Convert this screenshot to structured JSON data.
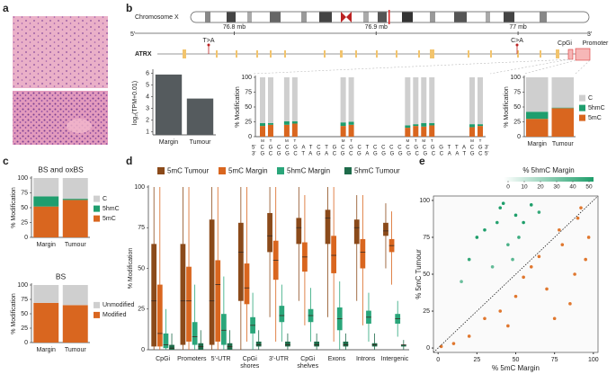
{
  "panel_labels": [
    "a",
    "b",
    "c",
    "d",
    "e"
  ],
  "gene_track": {
    "chromosome": "Chromosome X",
    "ends": [
      "5'",
      "3'"
    ],
    "xlim": [
      76.73,
      77.05
    ],
    "xticks": [
      {
        "value": 76.8,
        "label": "76.8 mb"
      },
      {
        "value": 76.9,
        "label": "76.9 mb"
      },
      {
        "value": 77,
        "label": "77 mb"
      }
    ],
    "gene": "ATRX",
    "mutations": [
      "T>A",
      "C>A"
    ],
    "regions": [
      "CpGi",
      "Promoter"
    ]
  },
  "chart_data": [
    {
      "type": "bar",
      "ylabel": "log₂(TPM+0.01)",
      "categories": [
        "Margin",
        "Tumour"
      ],
      "values": [
        5.9,
        3.85
      ],
      "color": "#555b5e",
      "ylim": [
        0.75,
        6.2
      ],
      "yticks": [
        1,
        2,
        3,
        4,
        5,
        6
      ]
    },
    {
      "type": "stacked_bar",
      "ylabel": "% Modification",
      "categories": [
        "M",
        "T",
        "M",
        "T",
        "M",
        "T",
        "M",
        "T",
        "M",
        "T",
        "M",
        "T"
      ],
      "sequence": "CGCCGATCTGCGCTCCCCCGCGGTTACG",
      "complement": "GCGGCTAGACGCGAGGGGGCGCCAATGC",
      "ends_top": [
        "5'",
        "3'"
      ],
      "ends_bottom": [
        "3'",
        "5'"
      ],
      "series": [
        {
          "color": "#d9661f",
          "values": [
            18,
            20,
            20,
            22,
            18,
            20,
            15,
            18,
            17,
            19,
            16,
            18
          ]
        },
        {
          "color": "#1f9e6e",
          "values": [
            5,
            3,
            6,
            4,
            6,
            5,
            4,
            3,
            6,
            4,
            5,
            3
          ]
        },
        {
          "color": "#cfcfcf",
          "values": [
            77,
            77,
            74,
            74,
            76,
            75,
            81,
            79,
            77,
            77,
            79,
            79
          ]
        }
      ],
      "ylim": [
        0,
        100
      ],
      "yticks": [
        0,
        25,
        50,
        75,
        100
      ]
    },
    {
      "type": "stacked_bar",
      "ylabel": "% Modification",
      "categories": [
        "Margin",
        "Tumour"
      ],
      "series": [
        {
          "name": "5mC",
          "color": "#d9661f",
          "values": [
            30,
            48
          ]
        },
        {
          "name": "5hmC",
          "color": "#1f9e6e",
          "values": [
            12,
            1
          ]
        },
        {
          "name": "C",
          "color": "#cfcfcf",
          "values": [
            58,
            51
          ]
        }
      ],
      "ylim": [
        0,
        100
      ],
      "yticks": [
        0,
        25,
        50,
        75,
        100
      ]
    },
    {
      "type": "stacked_bar",
      "title": "BS and oxBS",
      "ylabel": "% Modification",
      "categories": [
        "Margin",
        "Tumour"
      ],
      "series": [
        {
          "name": "5mC",
          "color": "#d9661f",
          "values": [
            52,
            63
          ]
        },
        {
          "name": "5hmC",
          "color": "#1f9e6e",
          "values": [
            17,
            2
          ]
        },
        {
          "name": "C",
          "color": "#cfcfcf",
          "values": [
            31,
            35
          ]
        }
      ],
      "ylim": [
        0,
        100
      ],
      "yticks": [
        0,
        25,
        50,
        75,
        100
      ]
    },
    {
      "type": "stacked_bar",
      "title": "BS",
      "ylabel": "% Modification",
      "categories": [
        "Margin",
        "Tumour"
      ],
      "series": [
        {
          "name": "Modified",
          "color": "#d9661f",
          "values": [
            69,
            65
          ]
        },
        {
          "name": "Unmodified",
          "color": "#cfcfcf",
          "values": [
            31,
            35
          ]
        }
      ],
      "ylim": [
        0,
        100
      ],
      "yticks": [
        0,
        25,
        50,
        75,
        100
      ]
    },
    {
      "type": "box",
      "ylabel": "% Modification",
      "categories": [
        "CpGi",
        "Promoters",
        "5'-UTR",
        "CpGi\nshores",
        "3'-UTR",
        "CpGi\nshelves",
        "Exons",
        "Introns",
        "Intergenic"
      ],
      "series": [
        {
          "name": "5mC Tumour",
          "color": "#8b4a1a",
          "values": [
            [
              0,
              2,
              30,
              65,
              100
            ],
            [
              0,
              3,
              30,
              65,
              100
            ],
            [
              0,
              3,
              30,
              80,
              100
            ],
            [
              0,
              30,
              60,
              78,
              100
            ],
            [
              20,
              60,
              70,
              84,
              100
            ],
            [
              30,
              65,
              75,
              81,
              100
            ],
            [
              20,
              65,
              81,
              86,
              100
            ],
            [
              30,
              65,
              75,
              80,
              95
            ],
            [
              50,
              70,
              73,
              78,
              90
            ]
          ]
        },
        {
          "name": "5mC Margin",
          "color": "#d9661f",
          "values": [
            [
              0,
              2,
              10,
              40,
              100
            ],
            [
              0,
              5,
              30,
              51,
              100
            ],
            [
              0,
              5,
              40,
              55,
              100
            ],
            [
              5,
              28,
              38,
              53,
              100
            ],
            [
              5,
              43,
              55,
              67,
              100
            ],
            [
              15,
              48,
              57,
              66,
              95
            ],
            [
              5,
              47,
              58,
              70,
              100
            ],
            [
              15,
              50,
              60,
              68,
              95
            ],
            [
              40,
              60,
              64,
              68,
              85
            ]
          ]
        },
        {
          "name": "5hmC Margin",
          "color": "#2aa67a",
          "values": [
            [
              0,
              1,
              3,
              10,
              25
            ],
            [
              0,
              3,
              8,
              17,
              40
            ],
            [
              0,
              3,
              12,
              22,
              45
            ],
            [
              0,
              10,
              15,
              20,
              35
            ],
            [
              5,
              17,
              21,
              27,
              40
            ],
            [
              5,
              17,
              21,
              25,
              38
            ],
            [
              0,
              12,
              19,
              26,
              42
            ],
            [
              5,
              16,
              20,
              24,
              35
            ],
            [
              8,
              16,
              19,
              22,
              30
            ]
          ]
        },
        {
          "name": "5hmC Tumour",
          "color": "#1e6b4a",
          "values": [
            [
              0,
              0,
              1,
              3,
              10
            ],
            [
              0,
              0,
              2,
              4,
              12
            ],
            [
              0,
              0,
              2,
              4,
              12
            ],
            [
              0,
              2,
              3,
              5,
              12
            ],
            [
              0,
              2,
              3,
              5,
              10
            ],
            [
              0,
              2,
              3,
              5,
              10
            ],
            [
              0,
              2,
              3,
              5,
              10
            ],
            [
              0,
              2,
              3,
              4,
              10
            ],
            [
              0,
              2,
              3,
              3,
              6
            ]
          ]
        }
      ],
      "ylim": [
        0,
        100
      ],
      "yticks": [
        0,
        25,
        50,
        75,
        100
      ]
    },
    {
      "type": "scatter",
      "xlabel": "% 5mC Margin",
      "ylabel": "% 5mC Tumour",
      "colorbar_title": "% 5hmC Margin",
      "x": [
        90,
        95,
        80,
        70,
        60,
        85,
        75,
        50,
        40,
        30,
        20,
        10,
        2,
        65,
        92,
        88,
        55,
        78,
        45,
        97,
        30,
        40,
        50,
        20,
        45,
        35,
        55,
        60,
        25,
        38,
        48,
        15,
        42,
        52,
        65
      ],
      "y": [
        88,
        60,
        70,
        40,
        55,
        30,
        20,
        35,
        25,
        20,
        8,
        3,
        1,
        62,
        95,
        50,
        48,
        80,
        15,
        75,
        80,
        95,
        90,
        60,
        70,
        55,
        85,
        97,
        75,
        85,
        60,
        45,
        98,
        75,
        92
      ],
      "colorvalues": [
        1,
        0,
        2,
        0,
        1,
        0,
        0,
        3,
        1,
        0,
        0,
        0,
        0,
        2,
        1,
        0,
        2,
        1,
        0,
        0,
        40,
        45,
        35,
        30,
        25,
        20,
        38,
        42,
        48,
        33,
        22,
        18,
        50,
        28,
        30
      ],
      "low_color": "#e0772e",
      "high_color": "#1e9e6a",
      "clim": [
        0,
        50
      ],
      "cticks": [
        0,
        10,
        20,
        30,
        40,
        50
      ],
      "xlim": [
        -3,
        103
      ],
      "ylim": [
        -3,
        103
      ],
      "xticks": [
        0,
        25,
        50,
        75,
        100
      ],
      "yticks": [
        0,
        25,
        50,
        75,
        100
      ]
    }
  ]
}
